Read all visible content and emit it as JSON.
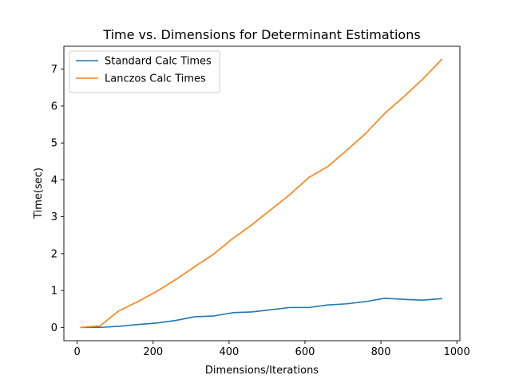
{
  "chart_data": {
    "type": "line",
    "title": "Time vs. Dimensions for Determinant Estimations",
    "xlabel": "Dimensions/Iterations",
    "ylabel": "Time(sec)",
    "xlim": [
      -35,
      1008
    ],
    "ylim": [
      -0.36,
      7.62
    ],
    "xticks": [
      0,
      200,
      400,
      600,
      800,
      1000
    ],
    "yticks": [
      0,
      1,
      2,
      3,
      4,
      5,
      6,
      7
    ],
    "grid": false,
    "legend_position": "top-left",
    "x": [
      10,
      60,
      110,
      160,
      210,
      260,
      310,
      360,
      410,
      460,
      510,
      560,
      610,
      660,
      710,
      760,
      810,
      860,
      910,
      960
    ],
    "series": [
      {
        "name": "Standard Calc Times",
        "color": "#1f77b4",
        "values": [
          0.0,
          0.0,
          0.03,
          0.08,
          0.12,
          0.19,
          0.29,
          0.31,
          0.4,
          0.42,
          0.48,
          0.54,
          0.54,
          0.61,
          0.64,
          0.7,
          0.79,
          0.76,
          0.74,
          0.78
        ]
      },
      {
        "name": "Lanczos Calc Times",
        "color": "#ff7f0e",
        "values": [
          0.0,
          0.04,
          0.45,
          0.7,
          0.98,
          1.3,
          1.65,
          1.99,
          2.41,
          2.78,
          3.19,
          3.6,
          4.06,
          4.36,
          4.8,
          5.26,
          5.8,
          6.25,
          6.73,
          7.26
        ]
      }
    ]
  }
}
